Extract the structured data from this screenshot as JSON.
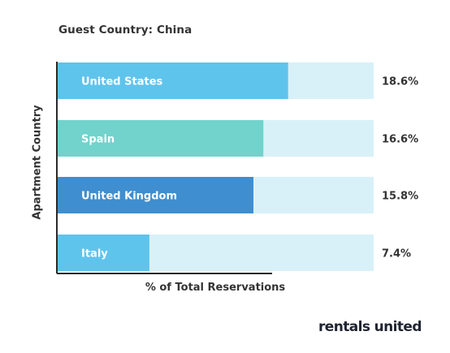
{
  "chart_data": {
    "type": "bar",
    "orientation": "horizontal",
    "stacked_background": true,
    "title": "Guest Country: China",
    "xlabel": "% of Total Reservations",
    "ylabel": "Apartment Country",
    "categories": [
      "United States",
      "Spain",
      "United Kingdom",
      "Italy"
    ],
    "values": [
      18.6,
      16.6,
      15.8,
      7.4
    ],
    "value_labels": [
      "18.6%",
      "16.6%",
      "15.8%",
      "7.4%"
    ],
    "bar_colors": [
      "#5fc4ec",
      "#71d3cc",
      "#3f8ecf",
      "#5fc4ec"
    ],
    "track_color": "#d8f1f8",
    "xlim": [
      0,
      25.5
    ],
    "grid": false,
    "legend": "none"
  },
  "brand": {
    "logo_text": "rentals united"
  }
}
